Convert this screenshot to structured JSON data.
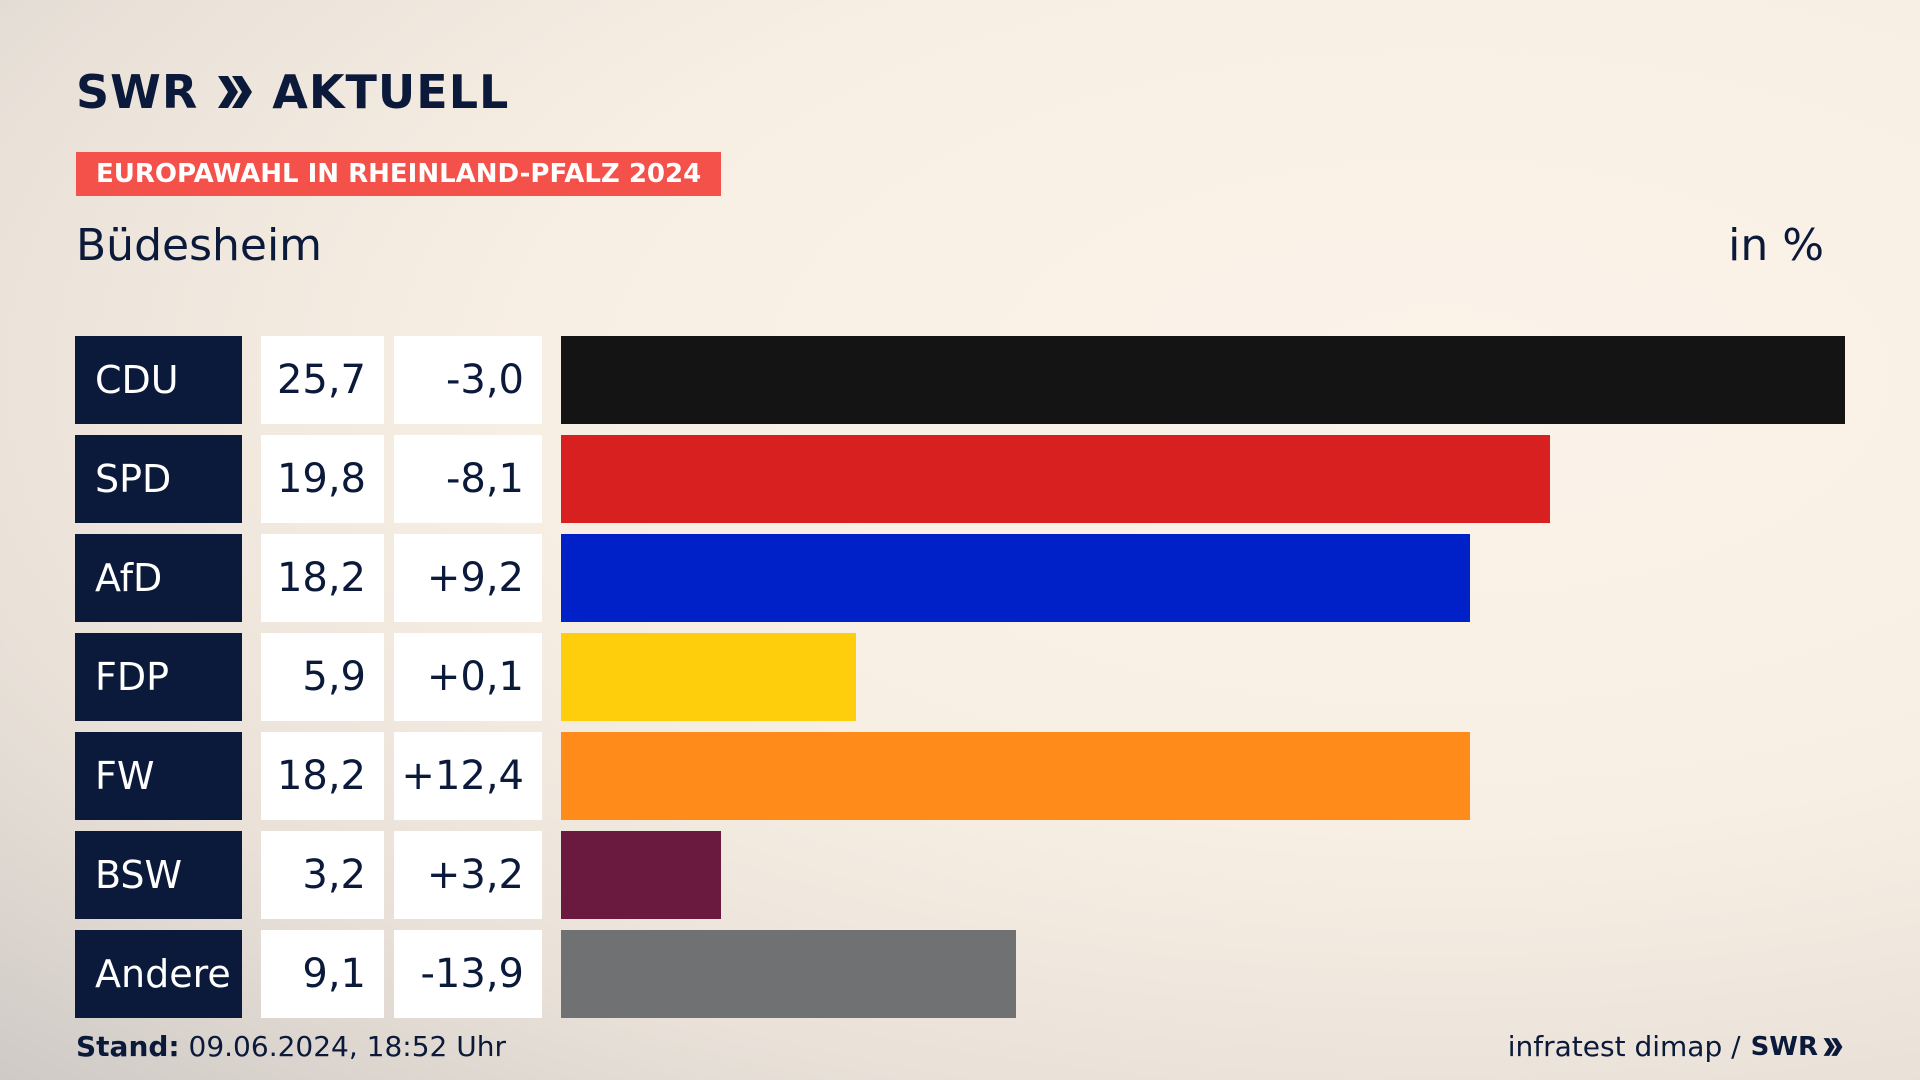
{
  "header": {
    "logo_text": "SWR",
    "logo_suffix": "AKTUELL",
    "badge": "EUROPAWAHL IN RHEINLAND-PFALZ 2024",
    "place": "Büdesheim",
    "unit": "in %"
  },
  "chart_data": {
    "type": "bar",
    "orientation": "horizontal",
    "title": "Büdesheim",
    "unit": "in %",
    "categories": [
      "CDU",
      "SPD",
      "AfD",
      "FDP",
      "FW",
      "BSW",
      "Andere"
    ],
    "values": [
      25.7,
      19.8,
      18.2,
      5.9,
      18.2,
      3.2,
      9.1
    ],
    "value_labels": [
      "25,7",
      "19,8",
      "18,2",
      "5,9",
      "18,2",
      "3,2",
      "9,1"
    ],
    "diff_labels": [
      "-3,0",
      "-8,1",
      "+9,2",
      "+0,1",
      "+12,4",
      "+3,2",
      "-13,9"
    ],
    "colors": [
      "#141414",
      "#d7201f",
      "#0021c8",
      "#fecd0b",
      "#ff8c1a",
      "#6a1a3e",
      "#707173"
    ],
    "xlim": [
      0,
      25.7
    ],
    "grid": false,
    "legend": "none"
  },
  "footer": {
    "stand_label": "Stand:",
    "stand_value": "09.06.2024, 18:52 Uhr",
    "source": "infratest dimap /",
    "source_brand": "SWR"
  },
  "icons": {
    "logo_arrows": "double-chevron-right-icon",
    "footer_arrows": "double-chevron-right-icon"
  }
}
